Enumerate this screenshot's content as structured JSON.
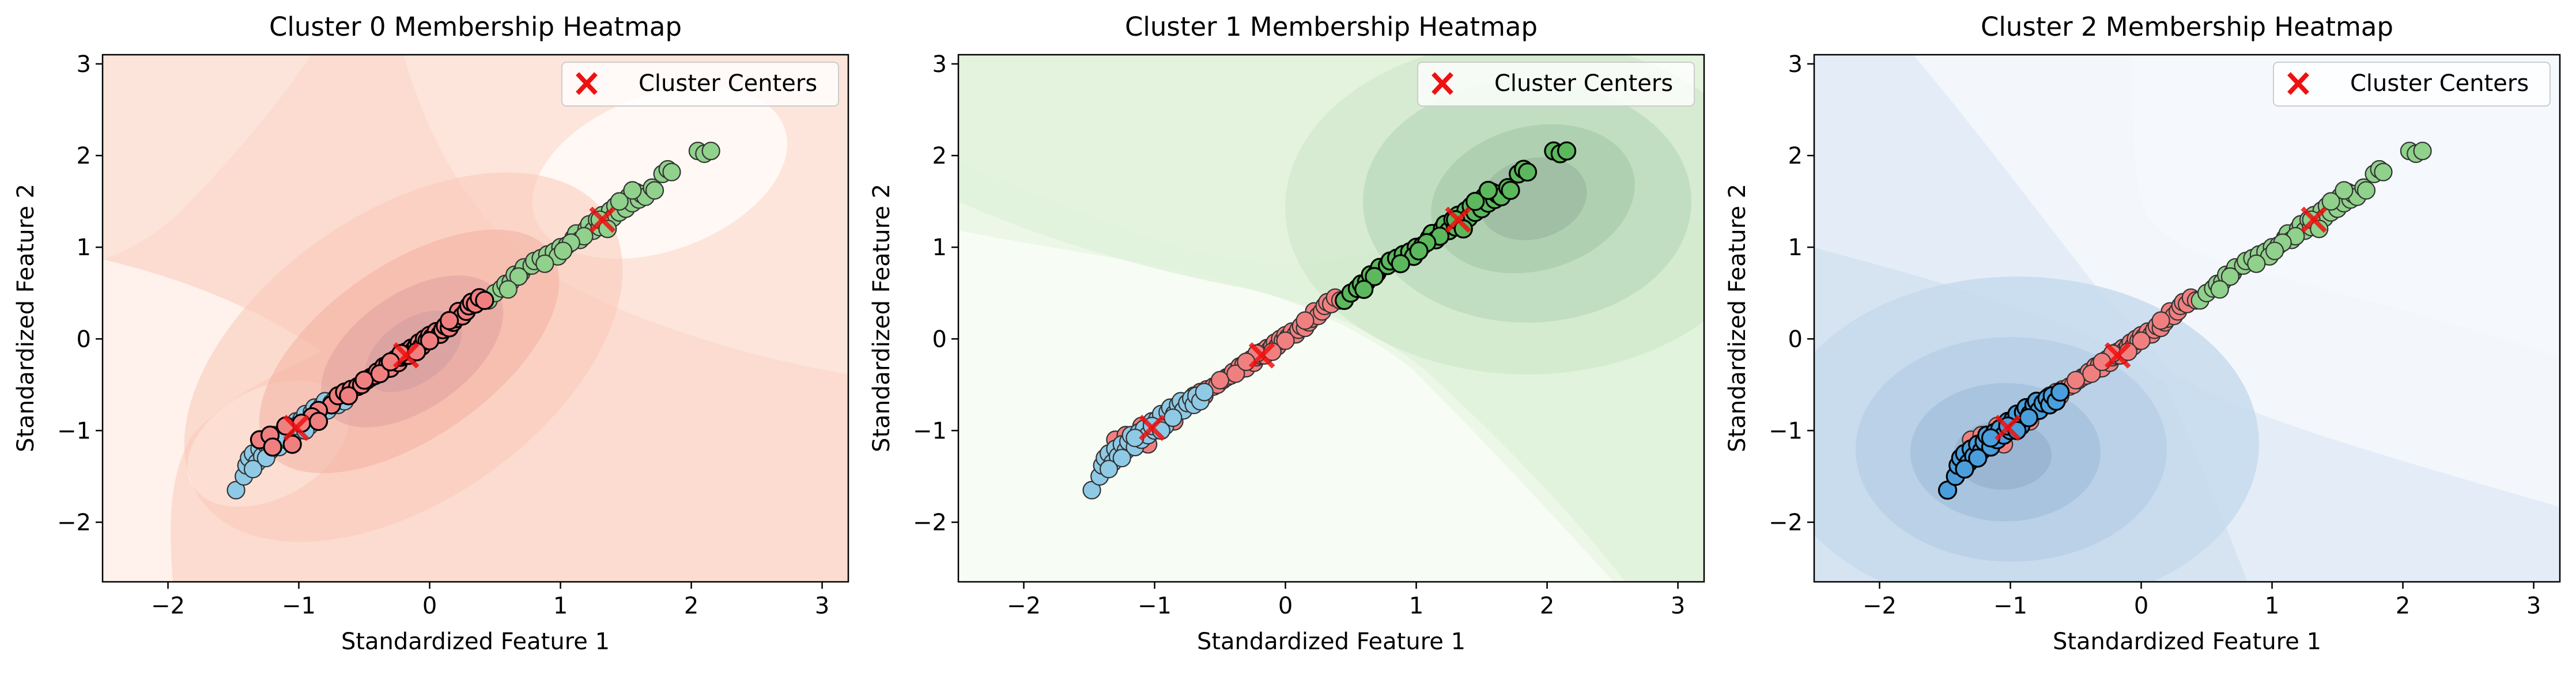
{
  "colors": {
    "cluster0_point": "#f08080",
    "cluster0_fill_light": "#fff5f0",
    "cluster0_fill_mid": "#fdd8c8",
    "cluster0_fill_dark": "#f5b0a0",
    "cluster1_point": "#90d18b",
    "cluster1_point_bold": "#5cb85c",
    "cluster1_fill_light": "#f7fcf5",
    "cluster1_fill_mid": "#dcf0d8",
    "cluster1_fill_dark": "#b6d8ba",
    "cluster2_point": "#8ecae6",
    "cluster2_point_bold": "#4a9edb",
    "cluster2_fill_light": "#f3f7fc",
    "cluster2_fill_mid": "#dce7f4",
    "cluster2_fill_dark": "#bcd3e8",
    "center_marker": "#ee1111",
    "point_edge": "#333333"
  },
  "legend_label": "Cluster Centers",
  "chart_data": [
    {
      "type": "scatter",
      "title": "Cluster 0 Membership Heatmap",
      "xlabel": "Standardized Feature 1",
      "ylabel": "Standardized Feature 2",
      "xlim": [
        -2.5,
        3.2
      ],
      "ylim": [
        -2.65,
        3.1
      ],
      "xticks": [
        -2,
        -1,
        0,
        1,
        2,
        3
      ],
      "yticks": [
        -2,
        -1,
        0,
        1,
        2,
        3
      ],
      "highlight_cluster": 0,
      "legend": {
        "label": "Cluster Centers",
        "position": "top-right"
      },
      "centers": [
        [
          -0.18,
          -0.18
        ],
        [
          1.32,
          1.3
        ],
        [
          -1.02,
          -0.97
        ]
      ]
    },
    {
      "type": "scatter",
      "title": "Cluster 1 Membership Heatmap",
      "xlabel": "Standardized Feature 1",
      "ylabel": "Standardized Feature 2",
      "xlim": [
        -2.5,
        3.2
      ],
      "ylim": [
        -2.65,
        3.1
      ],
      "xticks": [
        -2,
        -1,
        0,
        1,
        2,
        3
      ],
      "yticks": [
        -2,
        -1,
        0,
        1,
        2,
        3
      ],
      "highlight_cluster": 1,
      "legend": {
        "label": "Cluster Centers",
        "position": "top-right"
      },
      "centers": [
        [
          -0.18,
          -0.18
        ],
        [
          1.32,
          1.3
        ],
        [
          -1.02,
          -0.97
        ]
      ]
    },
    {
      "type": "scatter",
      "title": "Cluster 2 Membership Heatmap",
      "xlabel": "Standardized Feature 1",
      "ylabel": "Standardized Feature 2",
      "xlim": [
        -2.5,
        3.2
      ],
      "ylim": [
        -2.65,
        3.1
      ],
      "xticks": [
        -2,
        -1,
        0,
        1,
        2,
        3
      ],
      "yticks": [
        -2,
        -1,
        0,
        1,
        2,
        3
      ],
      "highlight_cluster": 2,
      "legend": {
        "label": "Cluster Centers",
        "position": "top-right"
      },
      "centers": [
        [
          -0.18,
          -0.18
        ],
        [
          1.32,
          1.3
        ],
        [
          -1.02,
          -0.97
        ]
      ]
    }
  ],
  "points": {
    "cluster0": [
      [
        -0.75,
        -0.72
      ],
      [
        -0.7,
        -0.62
      ],
      [
        -0.65,
        -0.58
      ],
      [
        -0.6,
        -0.55
      ],
      [
        -0.55,
        -0.52
      ],
      [
        -0.52,
        -0.5
      ],
      [
        -0.48,
        -0.45
      ],
      [
        -0.45,
        -0.42
      ],
      [
        -0.42,
        -0.4
      ],
      [
        -0.4,
        -0.36
      ],
      [
        -0.36,
        -0.35
      ],
      [
        -0.35,
        -0.3
      ],
      [
        -0.32,
        -0.28
      ],
      [
        -0.3,
        -0.32
      ],
      [
        -0.28,
        -0.24
      ],
      [
        -0.26,
        -0.22
      ],
      [
        -0.24,
        -0.26
      ],
      [
        -0.22,
        -0.2
      ],
      [
        -0.2,
        -0.18
      ],
      [
        -0.18,
        -0.14
      ],
      [
        -0.16,
        -0.18
      ],
      [
        -0.14,
        -0.1
      ],
      [
        -0.12,
        -0.12
      ],
      [
        -0.1,
        -0.08
      ],
      [
        -0.08,
        -0.04
      ],
      [
        -0.06,
        -0.08
      ],
      [
        -0.04,
        0.0
      ],
      [
        -0.02,
        -0.02
      ],
      [
        0.0,
        0.04
      ],
      [
        0.02,
        0.02
      ],
      [
        0.05,
        0.08
      ],
      [
        0.08,
        0.05
      ],
      [
        0.1,
        0.1
      ],
      [
        0.12,
        0.14
      ],
      [
        0.15,
        0.12
      ],
      [
        0.18,
        0.18
      ],
      [
        0.2,
        0.22
      ],
      [
        0.22,
        0.3
      ],
      [
        0.25,
        0.25
      ],
      [
        0.28,
        0.3
      ],
      [
        0.3,
        0.36
      ],
      [
        0.32,
        0.4
      ],
      [
        0.35,
        0.38
      ],
      [
        0.38,
        0.45
      ],
      [
        0.42,
        0.42
      ],
      [
        -0.85,
        -0.78
      ],
      [
        -0.9,
        -0.85
      ],
      [
        -0.62,
        -0.62
      ],
      [
        -0.5,
        -0.45
      ],
      [
        -0.38,
        -0.38
      ],
      [
        -0.22,
        -0.16
      ],
      [
        0.0,
        -0.02
      ],
      [
        0.15,
        0.2
      ],
      [
        -0.3,
        -0.25
      ],
      [
        -0.1,
        -0.14
      ],
      [
        -1.3,
        -1.1
      ],
      [
        -1.22,
        -1.05
      ],
      [
        -1.1,
        -0.95
      ],
      [
        -0.98,
        -0.92
      ],
      [
        -0.85,
        -0.9
      ],
      [
        -1.05,
        -1.15
      ],
      [
        -1.2,
        -1.18
      ]
    ],
    "cluster1": [
      [
        0.45,
        0.42
      ],
      [
        0.5,
        0.5
      ],
      [
        0.55,
        0.55
      ],
      [
        0.58,
        0.6
      ],
      [
        0.62,
        0.62
      ],
      [
        0.65,
        0.7
      ],
      [
        0.7,
        0.72
      ],
      [
        0.72,
        0.78
      ],
      [
        0.78,
        0.8
      ],
      [
        0.8,
        0.85
      ],
      [
        0.85,
        0.88
      ],
      [
        0.9,
        0.92
      ],
      [
        0.95,
        0.95
      ],
      [
        1.0,
        1.0
      ],
      [
        1.05,
        1.02
      ],
      [
        1.1,
        1.1
      ],
      [
        1.12,
        1.15
      ],
      [
        1.15,
        1.08
      ],
      [
        1.2,
        1.2
      ],
      [
        1.22,
        1.25
      ],
      [
        1.25,
        1.18
      ],
      [
        1.28,
        1.3
      ],
      [
        1.3,
        1.22
      ],
      [
        1.32,
        1.35
      ],
      [
        1.35,
        1.28
      ],
      [
        1.38,
        1.4
      ],
      [
        1.4,
        1.32
      ],
      [
        1.42,
        1.45
      ],
      [
        1.45,
        1.38
      ],
      [
        1.48,
        1.5
      ],
      [
        1.5,
        1.42
      ],
      [
        1.52,
        1.55
      ],
      [
        1.55,
        1.48
      ],
      [
        1.58,
        1.6
      ],
      [
        1.6,
        1.52
      ],
      [
        1.62,
        1.58
      ],
      [
        1.65,
        1.55
      ],
      [
        1.7,
        1.65
      ],
      [
        1.72,
        1.62
      ],
      [
        1.78,
        1.8
      ],
      [
        1.82,
        1.85
      ],
      [
        1.85,
        1.82
      ],
      [
        2.05,
        2.05
      ],
      [
        2.1,
        2.02
      ],
      [
        2.15,
        2.05
      ],
      [
        1.18,
        1.12
      ],
      [
        1.08,
        1.05
      ],
      [
        0.98,
        0.9
      ],
      [
        0.88,
        0.82
      ],
      [
        0.68,
        0.68
      ],
      [
        1.45,
        1.5
      ],
      [
        1.55,
        1.62
      ],
      [
        1.3,
        1.3
      ],
      [
        1.36,
        1.2
      ],
      [
        1.02,
        0.96
      ],
      [
        0.6,
        0.54
      ]
    ],
    "cluster2": [
      [
        -1.48,
        -1.65
      ],
      [
        -1.42,
        -1.5
      ],
      [
        -1.4,
        -1.38
      ],
      [
        -1.38,
        -1.3
      ],
      [
        -1.35,
        -1.25
      ],
      [
        -1.32,
        -1.35
      ],
      [
        -1.3,
        -1.2
      ],
      [
        -1.28,
        -1.28
      ],
      [
        -1.25,
        -1.15
      ],
      [
        -1.22,
        -1.22
      ],
      [
        -1.2,
        -1.12
      ],
      [
        -1.18,
        -1.05
      ],
      [
        -1.15,
        -1.18
      ],
      [
        -1.12,
        -1.02
      ],
      [
        -1.1,
        -1.1
      ],
      [
        -1.08,
        -0.98
      ],
      [
        -1.05,
        -1.05
      ],
      [
        -1.02,
        -0.9
      ],
      [
        -1.0,
        -1.0
      ],
      [
        -0.98,
        -0.88
      ],
      [
        -0.95,
        -0.82
      ],
      [
        -0.92,
        -0.95
      ],
      [
        -0.9,
        -0.8
      ],
      [
        -0.88,
        -0.75
      ],
      [
        -0.85,
        -0.82
      ],
      [
        -0.82,
        -0.72
      ],
      [
        -0.8,
        -0.68
      ],
      [
        -0.78,
        -0.78
      ],
      [
        -0.75,
        -0.7
      ],
      [
        -0.72,
        -0.65
      ],
      [
        -0.7,
        -0.72
      ],
      [
        -0.68,
        -0.62
      ],
      [
        -0.65,
        -0.68
      ],
      [
        -0.62,
        -0.58
      ],
      [
        -1.35,
        -1.42
      ],
      [
        -1.25,
        -1.3
      ],
      [
        -1.15,
        -1.08
      ],
      [
        -1.02,
        -0.95
      ],
      [
        -0.95,
        -1.0
      ],
      [
        -0.86,
        -0.86
      ]
    ]
  }
}
